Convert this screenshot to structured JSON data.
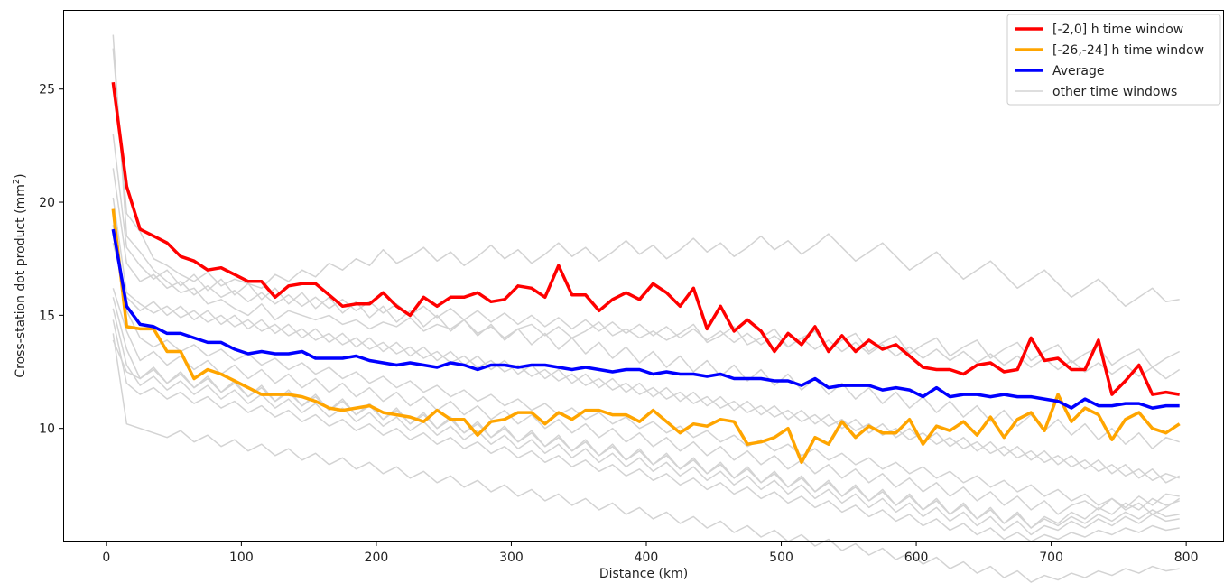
{
  "chart_data": {
    "type": "line",
    "xlabel": "Distance (km)",
    "ylabel": "Cross-station dot product (mm²)",
    "xlim": [
      -32,
      828
    ],
    "ylim": [
      5,
      28.5
    ],
    "x_ticks": [
      0,
      100,
      200,
      300,
      400,
      500,
      600,
      700,
      800
    ],
    "y_ticks": [
      10,
      15,
      20,
      25
    ],
    "legend_position": "top-right",
    "grid": false,
    "x": [
      5,
      15,
      25,
      35,
      45,
      55,
      65,
      75,
      85,
      95,
      105,
      115,
      125,
      135,
      145,
      155,
      165,
      175,
      185,
      195,
      205,
      215,
      225,
      235,
      245,
      255,
      265,
      275,
      285,
      295,
      305,
      315,
      325,
      335,
      345,
      355,
      365,
      375,
      385,
      395,
      405,
      415,
      425,
      435,
      445,
      455,
      465,
      475,
      485,
      495,
      505,
      515,
      525,
      535,
      545,
      555,
      565,
      575,
      585,
      595,
      605,
      615,
      625,
      635,
      645,
      655,
      665,
      675,
      685,
      695,
      705,
      715,
      725,
      735,
      745,
      755,
      765,
      775,
      785,
      795
    ],
    "series": [
      {
        "name": "[-2,0] h time window",
        "color": "#ff0000",
        "values": [
          25.3,
          20.7,
          18.8,
          18.5,
          18.2,
          17.6,
          17.4,
          17.0,
          17.1,
          16.8,
          16.5,
          16.5,
          15.8,
          16.3,
          16.4,
          16.4,
          15.9,
          15.4,
          15.5,
          15.5,
          16.0,
          15.4,
          15.0,
          15.8,
          15.4,
          15.8,
          15.8,
          16.0,
          15.6,
          15.7,
          16.3,
          16.2,
          15.8,
          17.2,
          15.9,
          15.9,
          15.2,
          15.7,
          16.0,
          15.7,
          16.4,
          16.0,
          15.4,
          16.2,
          14.4,
          15.4,
          14.3,
          14.8,
          14.3,
          13.4,
          14.2,
          13.7,
          14.5,
          13.4,
          14.1,
          13.4,
          13.9,
          13.5,
          13.7,
          13.2,
          12.7,
          12.6,
          12.6,
          12.4,
          12.8,
          12.9,
          12.5,
          12.6,
          14.0,
          13.0,
          13.1,
          12.6,
          12.6,
          13.9,
          11.5,
          12.1,
          12.8,
          11.5,
          11.6,
          11.5
        ]
      },
      {
        "name": "[-26,-24] h time window",
        "color": "#ffa500",
        "values": [
          19.7,
          14.5,
          14.4,
          14.4,
          13.4,
          13.4,
          12.2,
          12.6,
          12.4,
          12.1,
          11.8,
          11.5,
          11.5,
          11.5,
          11.4,
          11.2,
          10.9,
          10.8,
          10.9,
          11.0,
          10.7,
          10.6,
          10.5,
          10.3,
          10.8,
          10.4,
          10.4,
          9.7,
          10.3,
          10.4,
          10.7,
          10.7,
          10.2,
          10.7,
          10.4,
          10.8,
          10.8,
          10.6,
          10.6,
          10.3,
          10.8,
          10.3,
          9.8,
          10.2,
          10.1,
          10.4,
          10.3,
          9.3,
          9.4,
          9.6,
          10.0,
          8.5,
          9.6,
          9.3,
          10.3,
          9.6,
          10.1,
          9.8,
          9.8,
          10.4,
          9.3,
          10.1,
          9.9,
          10.3,
          9.7,
          10.5,
          9.6,
          10.4,
          10.7,
          9.9,
          11.5,
          10.3,
          10.9,
          10.6,
          9.5,
          10.4,
          10.7,
          10.0,
          9.8,
          10.2
        ]
      },
      {
        "name": "Average",
        "color": "#0000ff",
        "values": [
          18.8,
          15.4,
          14.6,
          14.5,
          14.2,
          14.2,
          14.0,
          13.8,
          13.8,
          13.5,
          13.3,
          13.4,
          13.3,
          13.3,
          13.4,
          13.1,
          13.1,
          13.1,
          13.2,
          13.0,
          12.9,
          12.8,
          12.9,
          12.8,
          12.7,
          12.9,
          12.8,
          12.6,
          12.8,
          12.8,
          12.7,
          12.8,
          12.8,
          12.7,
          12.6,
          12.7,
          12.6,
          12.5,
          12.6,
          12.6,
          12.4,
          12.5,
          12.4,
          12.4,
          12.3,
          12.4,
          12.2,
          12.2,
          12.2,
          12.1,
          12.1,
          11.9,
          12.2,
          11.8,
          11.9,
          11.9,
          11.9,
          11.7,
          11.8,
          11.7,
          11.4,
          11.8,
          11.4,
          11.5,
          11.5,
          11.4,
          11.5,
          11.4,
          11.4,
          11.3,
          11.2,
          10.9,
          11.3,
          11.0,
          11.0,
          11.1,
          11.1,
          10.9,
          11.0,
          11.0
        ]
      }
    ],
    "background_series_name": "other time windows",
    "background_series_color": "#d3d3d3",
    "background_series": [
      [
        27.4,
        18.5,
        17.8,
        17.0,
        16.5,
        16.0,
        16.2,
        15.5,
        15.7,
        15.3,
        15.0,
        15.5,
        14.8,
        15.2,
        15.0,
        14.8,
        15.0,
        14.6,
        14.8,
        14.4,
        14.7,
        14.5,
        14.9,
        14.3,
        14.6,
        14.4,
        14.8,
        14.2,
        14.5,
        14.0,
        14.4,
        14.6,
        14.1,
        14.5,
        14.0,
        14.3,
        14.7,
        14.1,
        14.4,
        14.0,
        14.3,
        13.9,
        14.2,
        14.6,
        13.8,
        14.1,
        14.5,
        13.7,
        14.0,
        14.4,
        13.6,
        14.0,
        14.3,
        13.5,
        13.9,
        14.2,
        13.4,
        13.8,
        14.1,
        13.3,
        13.7,
        14.0,
        13.2,
        13.6,
        13.9,
        13.1,
        13.5,
        13.8,
        13.0,
        13.4,
        13.7,
        12.9,
        13.3,
        13.6,
        12.8,
        13.2,
        13.5,
        12.7,
        13.1,
        13.4
      ],
      [
        26.8,
        19.5,
        18.7,
        17.5,
        17.2,
        16.8,
        16.5,
        16.9,
        16.3,
        16.6,
        16.4,
        16.2,
        16.8,
        16.5,
        17.0,
        16.7,
        17.3,
        17.0,
        17.5,
        17.2,
        17.9,
        17.3,
        17.6,
        18.0,
        17.4,
        17.8,
        17.2,
        17.6,
        18.1,
        17.5,
        17.9,
        17.3,
        17.7,
        18.2,
        17.6,
        18.0,
        17.4,
        17.8,
        18.3,
        17.7,
        18.1,
        17.5,
        17.9,
        18.4,
        17.8,
        18.2,
        17.6,
        18.0,
        18.5,
        17.9,
        18.3,
        17.7,
        18.1,
        18.6,
        18.0,
        17.4,
        17.8,
        18.2,
        17.6,
        17.0,
        17.4,
        17.8,
        17.2,
        16.6,
        17.0,
        17.4,
        16.8,
        16.2,
        16.6,
        17.0,
        16.4,
        15.8,
        16.2,
        16.6,
        16.0,
        15.4,
        15.8,
        16.2,
        15.6,
        15.7
      ],
      [
        21.5,
        17.3,
        16.5,
        16.8,
        16.2,
        16.5,
        15.9,
        16.3,
        15.8,
        16.1,
        15.6,
        16.0,
        15.5,
        15.9,
        15.4,
        15.8,
        15.3,
        15.7,
        15.2,
        15.6,
        15.1,
        15.5,
        15.0,
        15.4,
        14.9,
        15.3,
        14.8,
        15.2,
        14.7,
        15.1,
        14.6,
        15.0,
        14.5,
        14.9,
        14.4,
        14.8,
        14.3,
        14.7,
        14.2,
        14.6,
        14.1,
        14.5,
        14.0,
        14.4,
        13.9,
        14.3,
        13.8,
        14.2,
        13.7,
        14.1,
        13.6,
        14.0,
        13.5,
        13.9,
        13.4,
        13.8,
        13.3,
        13.7,
        13.2,
        13.6,
        13.1,
        13.5,
        13.0,
        13.4,
        12.9,
        13.3,
        12.8,
        13.2,
        12.7,
        13.1,
        12.6,
        13.0,
        12.5,
        12.9,
        12.4,
        12.8,
        12.3,
        12.7,
        12.2,
        12.6
      ],
      [
        20.2,
        16.0,
        15.5,
        15.1,
        15.4,
        14.9,
        15.2,
        14.7,
        15.0,
        14.5,
        14.8,
        14.3,
        14.6,
        14.1,
        14.4,
        13.9,
        14.2,
        13.7,
        14.0,
        13.5,
        13.8,
        13.3,
        13.6,
        13.1,
        13.4,
        12.9,
        13.2,
        12.7,
        13.0,
        12.5,
        12.8,
        12.3,
        12.6,
        12.1,
        12.4,
        11.9,
        12.2,
        11.7,
        12.0,
        11.5,
        11.8,
        11.3,
        11.6,
        11.1,
        11.4,
        10.9,
        11.2,
        10.7,
        11.0,
        10.5,
        10.8,
        10.3,
        10.6,
        10.1,
        10.4,
        9.9,
        10.2,
        9.7,
        10.0,
        9.5,
        9.8,
        9.3,
        9.6,
        9.1,
        9.4,
        8.9,
        9.2,
        8.7,
        9.0,
        8.5,
        8.8,
        8.3,
        8.6,
        8.1,
        8.4,
        7.9,
        8.2,
        7.7,
        8.0,
        7.8
      ],
      [
        19.0,
        15.2,
        14.0,
        13.6,
        13.9,
        13.4,
        13.7,
        13.2,
        13.5,
        13.0,
        13.3,
        12.8,
        13.1,
        12.6,
        12.9,
        12.4,
        12.7,
        12.2,
        12.5,
        12.0,
        12.3,
        11.8,
        12.1,
        11.6,
        11.9,
        11.4,
        11.7,
        11.2,
        11.5,
        11.0,
        11.3,
        10.8,
        11.1,
        10.6,
        10.9,
        10.4,
        10.7,
        10.2,
        10.5,
        10.0,
        10.3,
        9.8,
        10.1,
        9.6,
        9.9,
        9.4,
        9.7,
        9.2,
        9.5,
        9.0,
        9.3,
        8.8,
        9.1,
        8.6,
        8.9,
        8.4,
        8.7,
        8.2,
        8.5,
        8.0,
        8.3,
        7.8,
        8.1,
        7.6,
        7.9,
        7.4,
        7.7,
        7.2,
        7.5,
        7.0,
        7.3,
        6.8,
        7.1,
        6.6,
        6.9,
        6.4,
        6.7,
        6.2,
        6.5,
        6.9
      ],
      [
        16.2,
        14.3,
        13.0,
        13.4,
        12.8,
        13.2,
        12.6,
        13.0,
        12.4,
        12.8,
        12.2,
        12.6,
        12.0,
        12.4,
        11.8,
        12.2,
        11.6,
        12.0,
        11.4,
        11.8,
        11.2,
        11.6,
        11.0,
        11.4,
        10.8,
        11.2,
        10.6,
        11.0,
        10.4,
        10.8,
        10.2,
        10.6,
        10.0,
        10.4,
        9.8,
        10.2,
        9.6,
        10.0,
        9.4,
        9.8,
        9.2,
        9.6,
        9.0,
        9.4,
        8.8,
        9.2,
        8.6,
        9.0,
        8.4,
        8.8,
        8.2,
        8.6,
        8.0,
        8.4,
        7.8,
        8.2,
        7.6,
        8.0,
        7.4,
        7.8,
        7.2,
        7.6,
        7.0,
        7.4,
        6.8,
        7.2,
        6.6,
        7.0,
        6.4,
        6.8,
        6.2,
        6.6,
        6.8,
        6.4,
        6.9,
        6.5,
        7.0,
        6.6,
        7.1,
        7.0
      ],
      [
        15.8,
        13.5,
        12.2,
        12.6,
        12.0,
        12.4,
        11.8,
        12.2,
        11.6,
        12.0,
        11.4,
        11.8,
        11.2,
        11.6,
        11.0,
        11.4,
        10.8,
        11.2,
        10.6,
        11.0,
        10.4,
        10.8,
        10.2,
        10.6,
        10.0,
        10.4,
        9.8,
        10.2,
        9.6,
        10.0,
        9.4,
        9.8,
        9.2,
        9.6,
        9.0,
        9.4,
        8.8,
        9.2,
        8.6,
        9.0,
        8.4,
        8.8,
        8.2,
        8.6,
        8.0,
        8.4,
        7.8,
        8.2,
        7.6,
        8.0,
        7.4,
        7.8,
        7.2,
        7.6,
        7.0,
        7.4,
        6.8,
        7.2,
        6.6,
        7.0,
        6.4,
        6.8,
        6.2,
        6.6,
        6.0,
        6.4,
        5.8,
        6.2,
        5.6,
        6.0,
        5.7,
        6.1,
        5.8,
        6.2,
        5.9,
        6.3,
        6.0,
        6.4,
        6.1,
        6.2
      ],
      [
        15.3,
        12.8,
        11.9,
        12.3,
        11.7,
        12.1,
        11.5,
        11.9,
        11.3,
        11.7,
        11.1,
        11.5,
        10.9,
        11.3,
        10.7,
        11.1,
        10.5,
        10.9,
        10.3,
        10.7,
        10.1,
        10.5,
        9.9,
        10.3,
        9.7,
        10.1,
        9.5,
        9.9,
        9.3,
        9.7,
        9.1,
        9.5,
        8.9,
        9.3,
        8.7,
        9.1,
        8.5,
        8.9,
        8.3,
        8.7,
        8.1,
        8.5,
        7.9,
        8.3,
        7.7,
        8.1,
        7.5,
        7.9,
        7.3,
        7.7,
        7.1,
        7.5,
        6.9,
        7.3,
        6.7,
        7.1,
        6.5,
        6.9,
        6.3,
        6.7,
        6.1,
        6.5,
        5.9,
        6.3,
        5.7,
        6.1,
        5.5,
        5.9,
        5.3,
        5.7,
        5.5,
        5.9,
        5.6,
        6.0,
        5.7,
        6.1,
        5.8,
        6.2,
        5.9,
        6.0
      ],
      [
        14.8,
        12.0,
        11.5,
        11.8,
        11.3,
        11.6,
        11.1,
        11.4,
        10.9,
        11.2,
        10.7,
        11.0,
        10.5,
        10.8,
        10.3,
        10.6,
        10.1,
        10.4,
        9.9,
        10.2,
        9.7,
        10.0,
        9.5,
        9.8,
        9.3,
        9.6,
        9.1,
        9.4,
        8.9,
        9.2,
        8.7,
        9.0,
        8.5,
        8.8,
        8.3,
        8.6,
        8.1,
        8.4,
        7.9,
        8.2,
        7.7,
        8.0,
        7.5,
        7.8,
        7.3,
        7.6,
        7.1,
        7.4,
        6.9,
        7.2,
        6.7,
        7.0,
        6.5,
        6.8,
        6.3,
        6.6,
        6.1,
        6.4,
        5.9,
        6.2,
        5.7,
        6.0,
        5.5,
        5.8,
        5.3,
        5.6,
        5.1,
        5.4,
        5.0,
        5.3,
        5.1,
        5.4,
        5.2,
        5.5,
        5.3,
        5.6,
        5.4,
        5.7,
        5.5,
        5.6
      ],
      [
        14.2,
        10.2,
        10.0,
        9.8,
        9.6,
        9.9,
        9.4,
        9.7,
        9.2,
        9.5,
        9.0,
        9.3,
        8.8,
        9.1,
        8.6,
        8.9,
        8.4,
        8.7,
        8.2,
        8.5,
        8.0,
        8.3,
        7.8,
        8.1,
        7.6,
        7.9,
        7.4,
        7.7,
        7.2,
        7.5,
        7.0,
        7.3,
        6.8,
        7.1,
        6.6,
        6.9,
        6.4,
        6.7,
        6.2,
        6.5,
        6.0,
        6.3,
        5.8,
        6.1,
        5.6,
        5.9,
        5.4,
        5.7,
        5.2,
        5.5,
        5.0,
        5.3,
        4.8,
        5.1,
        4.6,
        4.9,
        4.4,
        4.7,
        4.2,
        4.5,
        4.0,
        4.3,
        3.8,
        4.1,
        3.6,
        3.9,
        3.4,
        3.7,
        3.2,
        3.5,
        3.3,
        3.6,
        3.4,
        3.7,
        3.5,
        3.8,
        3.6,
        3.9,
        3.7,
        3.8
      ],
      [
        13.9,
        12.5,
        12.2,
        12.7,
        12.0,
        12.5,
        11.8,
        12.3,
        11.6,
        12.1,
        11.4,
        11.9,
        11.2,
        11.7,
        11.0,
        11.5,
        10.8,
        11.3,
        10.6,
        11.1,
        10.4,
        10.9,
        10.2,
        10.7,
        10.0,
        10.5,
        9.8,
        10.3,
        9.6,
        10.1,
        9.4,
        9.9,
        9.2,
        9.7,
        9.0,
        9.5,
        8.8,
        9.3,
        8.6,
        9.1,
        8.4,
        8.9,
        8.2,
        8.7,
        8.0,
        8.5,
        7.8,
        8.3,
        7.6,
        8.1,
        7.4,
        7.9,
        7.2,
        7.7,
        7.0,
        7.5,
        6.8,
        7.3,
        6.6,
        7.1,
        6.4,
        6.9,
        6.2,
        6.7,
        6.0,
        6.5,
        5.8,
        6.3,
        5.6,
        6.1,
        5.8,
        6.3,
        6.0,
        6.5,
        6.2,
        6.7,
        6.4,
        6.9,
        6.6,
        6.8
      ],
      [
        23.0,
        18.0,
        17.2,
        16.6,
        17.0,
        16.3,
        16.8,
        16.1,
        16.6,
        15.9,
        16.4,
        15.7,
        16.2,
        15.5,
        16.0,
        15.3,
        15.8,
        15.1,
        15.6,
        14.9,
        15.4,
        14.7,
        15.2,
        14.5,
        15.0,
        14.3,
        14.8,
        14.1,
        14.6,
        13.9,
        14.4,
        13.7,
        14.2,
        13.5,
        14.0,
        13.3,
        13.8,
        13.1,
        13.6,
        12.9,
        13.4,
        12.7,
        13.2,
        12.5,
        13.0,
        12.3,
        12.8,
        12.1,
        12.6,
        11.9,
        12.4,
        11.7,
        12.2,
        11.5,
        12.0,
        11.3,
        11.8,
        11.1,
        11.6,
        10.9,
        11.4,
        10.7,
        11.2,
        10.5,
        11.0,
        10.3,
        10.8,
        10.1,
        10.6,
        9.9,
        10.4,
        9.7,
        10.2,
        9.5,
        10.0,
        9.3,
        9.8,
        9.1,
        9.6,
        9.4
      ],
      [
        18.2,
        15.8,
        15.2,
        15.6,
        15.0,
        15.4,
        14.8,
        15.2,
        14.6,
        15.0,
        14.4,
        14.8,
        14.2,
        14.6,
        14.0,
        14.4,
        13.8,
        14.2,
        13.6,
        14.0,
        13.4,
        13.8,
        13.2,
        13.6,
        13.0,
        13.4,
        12.8,
        13.2,
        12.6,
        13.0,
        12.4,
        12.8,
        12.2,
        12.6,
        12.0,
        12.4,
        11.8,
        12.2,
        11.6,
        12.0,
        11.4,
        11.8,
        11.2,
        11.6,
        11.0,
        11.4,
        10.8,
        11.2,
        10.6,
        11.0,
        10.4,
        10.8,
        10.2,
        10.6,
        10.0,
        10.4,
        9.8,
        10.2,
        9.6,
        10.0,
        9.4,
        9.8,
        9.2,
        9.6,
        9.0,
        9.4,
        8.8,
        9.2,
        8.6,
        9.0,
        8.4,
        8.8,
        8.2,
        8.6,
        8.0,
        8.4,
        7.8,
        8.2,
        7.6,
        7.9
      ]
    ]
  }
}
